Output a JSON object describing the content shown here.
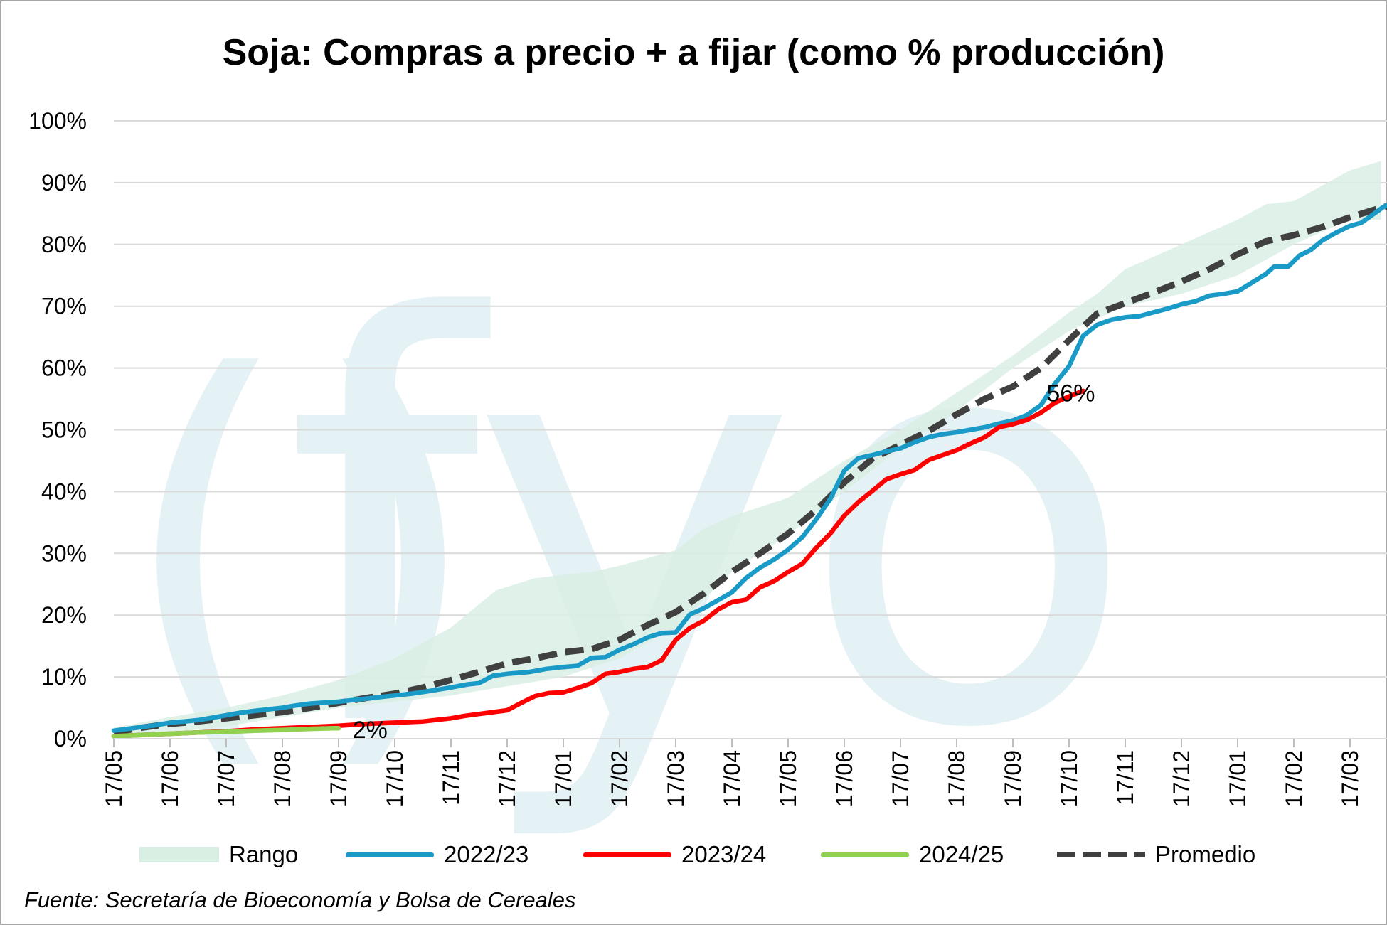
{
  "colors": {
    "range": "#d9efe4",
    "s2223": "#1a9bc7",
    "s2324": "#ff0000",
    "s2425": "#92d050",
    "avg": "#404040",
    "grid": "#d9d9d9",
    "watermark": "#e4f1f5"
  },
  "watermark_text": "fyo",
  "source": "Fuente: Secretaría de Bioeconomía y Bolsa de Cereales",
  "chart_data": {
    "type": "line",
    "title": "Soja: Compras a precio + a fijar (como % producción)",
    "y_tick_labels": [
      "0%",
      "10%",
      "20%",
      "30%",
      "40%",
      "50%",
      "60%",
      "70%",
      "80%",
      "90%",
      "100%"
    ],
    "ylim": [
      0,
      100
    ],
    "x_tick_labels": [
      "17/05",
      "17/06",
      "17/07",
      "17/08",
      "17/09",
      "17/10",
      "17/11",
      "17/12",
      "17/01",
      "17/02",
      "17/03",
      "17/04",
      "17/05",
      "17/06",
      "17/07",
      "17/08",
      "17/09",
      "17/10",
      "17/11",
      "17/12",
      "17/01",
      "17/02",
      "17/03"
    ],
    "x_max_month": 22.55,
    "grid": true,
    "legend_position": "bottom",
    "annotations": [
      {
        "text": "56%",
        "x": 16.6,
        "y": 56
      },
      {
        "text": "2%",
        "x": 4.25,
        "y": 1.5
      }
    ],
    "range": {
      "name": "Rango",
      "upper": [
        [
          0,
          1.8
        ],
        [
          1,
          3.5
        ],
        [
          2,
          5
        ],
        [
          3,
          7
        ],
        [
          4,
          9.5
        ],
        [
          5,
          13
        ],
        [
          6,
          18
        ],
        [
          6.8,
          24
        ],
        [
          7.5,
          26
        ],
        [
          8.5,
          27
        ],
        [
          9,
          28
        ],
        [
          10,
          30.5
        ],
        [
          10.5,
          34
        ],
        [
          11,
          36
        ],
        [
          12,
          39
        ],
        [
          13,
          45
        ],
        [
          14,
          50
        ],
        [
          15,
          56
        ],
        [
          16,
          62
        ],
        [
          17,
          69
        ],
        [
          17.5,
          72
        ],
        [
          18,
          76
        ],
        [
          19,
          80
        ],
        [
          20,
          84
        ],
        [
          20.5,
          86.5
        ],
        [
          21,
          87
        ],
        [
          22,
          92
        ],
        [
          22.55,
          93.5
        ]
      ],
      "lower": [
        [
          0,
          0.5
        ],
        [
          1,
          1
        ],
        [
          2,
          2
        ],
        [
          3,
          3.5
        ],
        [
          4,
          5
        ],
        [
          5,
          6
        ],
        [
          6,
          7
        ],
        [
          7,
          8.5
        ],
        [
          8,
          10
        ],
        [
          9,
          13
        ],
        [
          10,
          18
        ],
        [
          11,
          27
        ],
        [
          12,
          33
        ],
        [
          13,
          40
        ],
        [
          14,
          47
        ],
        [
          15,
          53
        ],
        [
          16,
          60
        ],
        [
          17,
          66
        ],
        [
          18,
          70
        ],
        [
          19,
          72
        ],
        [
          20,
          75
        ],
        [
          21,
          80
        ],
        [
          22,
          84
        ],
        [
          22.55,
          84
        ]
      ]
    },
    "series": [
      {
        "name": "2022/23",
        "key": "s2223",
        "points": [
          [
            0,
            1.3
          ],
          [
            0.25,
            1.6
          ],
          [
            0.5,
            1.9
          ],
          [
            0.75,
            2.2
          ],
          [
            1,
            2.6
          ],
          [
            1.25,
            2.8
          ],
          [
            1.5,
            3
          ],
          [
            1.75,
            3.4
          ],
          [
            2,
            3.8
          ],
          [
            2.25,
            4.2
          ],
          [
            2.5,
            4.5
          ],
          [
            3,
            5
          ],
          [
            3.25,
            5.4
          ],
          [
            3.5,
            5.7
          ],
          [
            4,
            6
          ],
          [
            4.5,
            6.5
          ],
          [
            5,
            7
          ],
          [
            5.3,
            7.3
          ],
          [
            5.6,
            7.7
          ],
          [
            6,
            8.3
          ],
          [
            6.3,
            8.8
          ],
          [
            6.5,
            9
          ],
          [
            6.75,
            10.2
          ],
          [
            7,
            10.5
          ],
          [
            7.4,
            10.8
          ],
          [
            7.7,
            11.3
          ],
          [
            8,
            11.6
          ],
          [
            8.25,
            11.8
          ],
          [
            8.5,
            13.1
          ],
          [
            8.75,
            13.2
          ],
          [
            9,
            14.4
          ],
          [
            9.25,
            15.3
          ],
          [
            9.5,
            16.4
          ],
          [
            9.75,
            17.1
          ],
          [
            10,
            17.2
          ],
          [
            10.25,
            20.1
          ],
          [
            10.5,
            21.1
          ],
          [
            10.75,
            22.4
          ],
          [
            11,
            23.7
          ],
          [
            11.25,
            26
          ],
          [
            11.5,
            27.7
          ],
          [
            11.75,
            29
          ],
          [
            12,
            30.6
          ],
          [
            12.25,
            32.6
          ],
          [
            12.5,
            35.5
          ],
          [
            12.75,
            38.8
          ],
          [
            13,
            43.4
          ],
          [
            13.25,
            45.4
          ],
          [
            13.5,
            45.9
          ],
          [
            13.75,
            46.5
          ],
          [
            14,
            47
          ],
          [
            14.25,
            48
          ],
          [
            14.5,
            48.8
          ],
          [
            14.75,
            49.3
          ],
          [
            15,
            49.6
          ],
          [
            15.5,
            50.4
          ],
          [
            15.75,
            51
          ],
          [
            16,
            51.5
          ],
          [
            16.25,
            52.4
          ],
          [
            16.5,
            54
          ],
          [
            16.75,
            57.5
          ],
          [
            17,
            60.3
          ],
          [
            17.25,
            65.2
          ],
          [
            17.5,
            67
          ],
          [
            17.75,
            67.8
          ],
          [
            18,
            68.2
          ],
          [
            18.25,
            68.4
          ],
          [
            18.5,
            69
          ],
          [
            18.75,
            69.6
          ],
          [
            19,
            70.3
          ],
          [
            19.25,
            70.8
          ],
          [
            19.5,
            71.7
          ],
          [
            19.75,
            72
          ],
          [
            20,
            72.4
          ],
          [
            20.25,
            73.8
          ],
          [
            20.5,
            75.2
          ],
          [
            20.65,
            76.4
          ],
          [
            20.9,
            76.4
          ],
          [
            21.1,
            78.2
          ],
          [
            21.3,
            79.1
          ],
          [
            21.5,
            80.6
          ],
          [
            21.75,
            81.9
          ],
          [
            22,
            83
          ],
          [
            22.2,
            83.5
          ],
          [
            22.4,
            84.8
          ],
          [
            22.6,
            86.1
          ],
          [
            22.8,
            86.9
          ],
          [
            23,
            87.6
          ],
          [
            23.3,
            88.2
          ],
          [
            23.6,
            88.6
          ]
        ]
      },
      {
        "name": "2023/24",
        "key": "s2324",
        "points": [
          [
            0,
            0.4
          ],
          [
            0.5,
            0.6
          ],
          [
            1,
            0.8
          ],
          [
            1.5,
            1
          ],
          [
            2,
            1.2
          ],
          [
            2.5,
            1.5
          ],
          [
            3,
            1.7
          ],
          [
            3.5,
            1.9
          ],
          [
            4,
            2.1
          ],
          [
            4.5,
            2.4
          ],
          [
            5,
            2.6
          ],
          [
            5.5,
            2.8
          ],
          [
            6,
            3.3
          ],
          [
            6.25,
            3.7
          ],
          [
            6.5,
            4
          ],
          [
            6.75,
            4.3
          ],
          [
            7,
            4.6
          ],
          [
            7.25,
            5.8
          ],
          [
            7.5,
            6.9
          ],
          [
            7.75,
            7.4
          ],
          [
            8,
            7.5
          ],
          [
            8.25,
            8.2
          ],
          [
            8.5,
            9
          ],
          [
            8.75,
            10.5
          ],
          [
            9,
            10.8
          ],
          [
            9.25,
            11.3
          ],
          [
            9.5,
            11.6
          ],
          [
            9.75,
            12.7
          ],
          [
            10,
            16
          ],
          [
            10.25,
            17.9
          ],
          [
            10.5,
            19.1
          ],
          [
            10.75,
            20.9
          ],
          [
            11,
            22.1
          ],
          [
            11.25,
            22.5
          ],
          [
            11.5,
            24.5
          ],
          [
            11.75,
            25.5
          ],
          [
            12,
            27
          ],
          [
            12.25,
            28.3
          ],
          [
            12.5,
            30.9
          ],
          [
            12.75,
            33.2
          ],
          [
            13,
            36.1
          ],
          [
            13.25,
            38.3
          ],
          [
            13.5,
            40.1
          ],
          [
            13.75,
            42
          ],
          [
            14,
            42.8
          ],
          [
            14.25,
            43.5
          ],
          [
            14.5,
            45.1
          ],
          [
            14.75,
            45.9
          ],
          [
            15,
            46.7
          ],
          [
            15.25,
            47.8
          ],
          [
            15.5,
            48.8
          ],
          [
            15.75,
            50.4
          ],
          [
            16,
            50.9
          ],
          [
            16.25,
            51.6
          ],
          [
            16.5,
            52.8
          ],
          [
            16.75,
            54.4
          ],
          [
            17,
            55.4
          ],
          [
            17.25,
            56.3
          ]
        ]
      },
      {
        "name": "2024/25",
        "key": "s2425",
        "points": [
          [
            0,
            0.4
          ],
          [
            0.5,
            0.6
          ],
          [
            1,
            0.8
          ],
          [
            1.5,
            1
          ],
          [
            2,
            1.1
          ],
          [
            2.5,
            1.3
          ],
          [
            3,
            1.4
          ],
          [
            3.5,
            1.6
          ],
          [
            3.9,
            1.7
          ],
          [
            4,
            1.7
          ]
        ]
      },
      {
        "name": "Promedio",
        "key": "avg",
        "points": [
          [
            0,
            1
          ],
          [
            0.5,
            1.8
          ],
          [
            1,
            2.4
          ],
          [
            1.5,
            2.8
          ],
          [
            2,
            3.3
          ],
          [
            2.5,
            3.8
          ],
          [
            3,
            4.3
          ],
          [
            3.5,
            5
          ],
          [
            4,
            5.8
          ],
          [
            4.5,
            6.6
          ],
          [
            5,
            7.3
          ],
          [
            5.5,
            8.3
          ],
          [
            6,
            9.5
          ],
          [
            6.5,
            10.8
          ],
          [
            7,
            12.2
          ],
          [
            7.5,
            13
          ],
          [
            8,
            14
          ],
          [
            8.5,
            14.5
          ],
          [
            9,
            16
          ],
          [
            9.5,
            18.4
          ],
          [
            10,
            20.5
          ],
          [
            10.5,
            23.5
          ],
          [
            11,
            27
          ],
          [
            11.5,
            30
          ],
          [
            12,
            33.2
          ],
          [
            12.5,
            37
          ],
          [
            13,
            41.5
          ],
          [
            13.5,
            45.3
          ],
          [
            14,
            47.6
          ],
          [
            14.5,
            49.8
          ],
          [
            15,
            52.5
          ],
          [
            15.5,
            55
          ],
          [
            16,
            57
          ],
          [
            16.5,
            60
          ],
          [
            17,
            64.5
          ],
          [
            17.25,
            66.7
          ],
          [
            17.5,
            68.8
          ],
          [
            18,
            70.5
          ],
          [
            18.5,
            72.2
          ],
          [
            19,
            74
          ],
          [
            19.5,
            76
          ],
          [
            20,
            78.4
          ],
          [
            20.5,
            80.5
          ],
          [
            21,
            81.5
          ],
          [
            21.5,
            82.8
          ],
          [
            22,
            84.4
          ],
          [
            22.5,
            85.8
          ],
          [
            23,
            87
          ],
          [
            23.6,
            87.4
          ]
        ]
      }
    ]
  }
}
